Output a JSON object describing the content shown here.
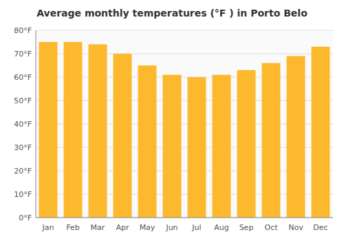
{
  "chart_data": {
    "type": "bar",
    "title": "Average monthly temperatures (°F ) in Porto Belo",
    "categories": [
      "Jan",
      "Feb",
      "Mar",
      "Apr",
      "May",
      "Jun",
      "Jul",
      "Aug",
      "Sep",
      "Oct",
      "Nov",
      "Dec"
    ],
    "values": [
      75,
      75,
      74,
      70,
      65,
      61,
      60,
      61,
      63,
      66,
      69,
      73
    ],
    "color": "#FDB92E",
    "ylim": [
      0,
      80
    ],
    "yticks": [
      {
        "value": 0,
        "label": "0°F"
      },
      {
        "value": 10,
        "label": "10°F"
      },
      {
        "value": 20,
        "label": "20°F"
      },
      {
        "value": 30,
        "label": "30°F"
      },
      {
        "value": 40,
        "label": "40°F"
      },
      {
        "value": 50,
        "label": "50°F"
      },
      {
        "value": 60,
        "label": "60°F"
      },
      {
        "value": 70,
        "label": "70°F"
      },
      {
        "value": 80,
        "label": "80°F"
      }
    ],
    "grid": true
  }
}
